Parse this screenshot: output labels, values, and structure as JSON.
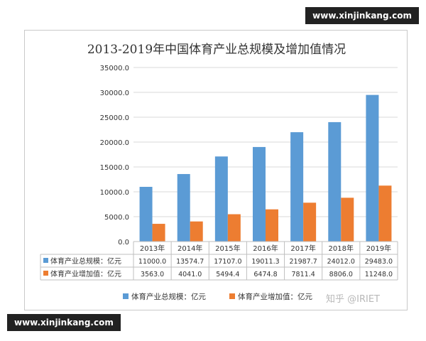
{
  "watermark_top": "www.xinjinkang.com",
  "watermark_bottom": "www.xinjinkang.com",
  "watermark_zhihu": "知乎 @IRIET",
  "colors": {
    "series1": "#5b9bd5",
    "series2": "#ed7d31",
    "grid": "#d9d9d9",
    "text": "#333333"
  },
  "chart_data": {
    "type": "bar",
    "title": "2013-2019年中国体育产业总规模及增加值情况",
    "categories": [
      "2013年",
      "2014年",
      "2015年",
      "2016年",
      "2017年",
      "2018年",
      "2019年"
    ],
    "series": [
      {
        "name": "体育产业总规模：亿元",
        "color": "#5b9bd5",
        "values": [
          11000.0,
          13574.7,
          17107.0,
          19011.3,
          21987.7,
          24012.0,
          29483.0
        ],
        "labels": [
          "11000.0",
          "13574.7",
          "17107.0",
          "19011.3",
          "21987.7",
          "24012.0",
          "29483.0"
        ]
      },
      {
        "name": "体育产业增加值：亿元",
        "color": "#ed7d31",
        "values": [
          3563.0,
          4041.0,
          5494.4,
          6474.8,
          7811.4,
          8806.0,
          11248.0
        ],
        "labels": [
          "3563.0",
          "4041.0",
          "5494.4",
          "6474.8",
          "7811.4",
          "8806.0",
          "11248.0"
        ]
      }
    ],
    "ylim": [
      0,
      35000
    ],
    "yticks": [
      0,
      5000,
      10000,
      15000,
      20000,
      25000,
      30000,
      35000
    ],
    "ytick_labels": [
      "0.0",
      "5000.0",
      "10000.0",
      "15000.0",
      "20000.0",
      "25000.0",
      "30000.0",
      "35000.0"
    ],
    "grid": true,
    "data_table": true,
    "legend_position": "bottom"
  }
}
